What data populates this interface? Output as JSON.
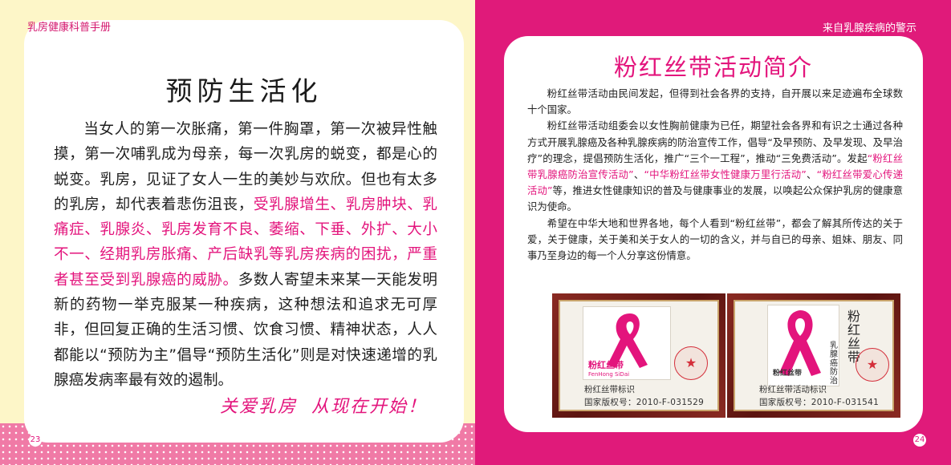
{
  "left_page": {
    "header": "乳房健康科普手册",
    "title": "预防生活化",
    "body_part1": "当女人的第一次胀痛，第一件胸罩，第一次被异性触摸，第一次哺乳成为母亲，每一次乳房的蜕变，都是心的蜕变。乳房，见证了女人一生的美妙与欢欣。但也有太多的乳房，却代表着悲伤沮丧，",
    "body_highlight": "受乳腺增生、乳房肿块、乳痛症、乳腺炎、乳房发育不良、萎缩、下垂、外扩、大小不一、经期乳房胀痛、产后缺乳等乳房疾病的困扰，严重者甚至受到乳腺癌的威胁。",
    "body_part2": "多数人寄望未来某一天能发明新的药物一举克服某一种疾病，这种想法和追求无可厚非，但回复正确的生活习惯、饮食习惯、精神状态，人人都能以“预防为主”倡导“预防生活化”则是对快速递增的乳腺癌发病率最有效的遏制。",
    "slogan": "关爱乳房  从现在开始！",
    "page_number": "23"
  },
  "right_page": {
    "header": "来自乳腺疾病的警示",
    "title": "粉红丝带活动简介",
    "para1": "粉红丝带活动由民间发起，但得到社会各界的支持，自开展以来足迹遍布全球数十个国家。",
    "para2_part1": "粉红丝带活动组委会以女性胸前健康为已任，期望社会各界和有识之士通过各种方式开展乳腺癌及各种乳腺疾病的防治宣传工作，倡导“及早预防、及早发现、及早治疗”的理念，提倡预防生活化，推广“三个一工程”，推动“三免费活动”。发起",
    "para2_hl1": "“粉红丝带乳腺癌防治宣传活动”",
    "para2_sep1": "、",
    "para2_hl2": "“中华粉红丝带女性健康万里行活动”",
    "para2_sep2": "、",
    "para2_hl3": "“粉红丝带爱心传递活动”",
    "para2_part2": "等，推进女性健康知识的普及与健康事业的发展，以唤起公众保护乳房的健康意识为使命。",
    "para3": "希望在中华大地和世界各地，每个人看到“粉红丝带”，都会了解其所传达的关于爱，关于健康，关于美和关于女人的一切的含义，并与自已的母亲、姐妹、朋友、同事乃至身边的每一个人分享这份情意。",
    "certificates": [
      {
        "emblem_text": "粉红丝带",
        "emblem_sub": "FenHong SiDai",
        "label": "粉红丝带标识",
        "number": "国家版权号：2010-F-031529"
      },
      {
        "emblem_text": "粉红丝带",
        "vertical_name": "粉红丝带",
        "vertical_sub": "乳腺癌防治",
        "label": "粉红丝带活动标识",
        "number": "国家版权号：2010-F-031541"
      }
    ],
    "page_number": "24"
  },
  "colors": {
    "accent_pink": "#e3147c",
    "right_background": "#e01a7a",
    "left_background": "#fdf6c8",
    "frame_brown": "#5c1410"
  }
}
